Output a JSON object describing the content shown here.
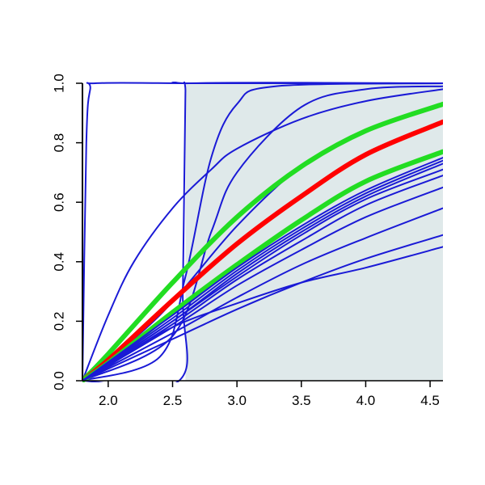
{
  "chart_data": {
    "type": "line",
    "title": "",
    "xlabel": "",
    "ylabel": "",
    "xlim": [
      1.8,
      4.6
    ],
    "ylim": [
      0.0,
      1.0
    ],
    "x_ticks": [
      "2.0",
      "2.5",
      "3.0",
      "3.5",
      "4.0",
      "4.5"
    ],
    "y_ticks": [
      "0.0",
      "0.2",
      "0.4",
      "0.6",
      "0.8",
      "1.0"
    ],
    "grid": false,
    "legend": "none",
    "colors": {
      "shade": "#dfe9ea",
      "blue": "#1a1ad6",
      "red": "#ff0000",
      "green": "#22dd22",
      "axis": "#000000"
    },
    "shaded_region": {
      "x_from": 2.6,
      "x_to": 4.6
    },
    "series": [
      {
        "color": "blue",
        "width": 2,
        "values": [
          [
            1.8,
            0.0
          ],
          [
            1.83,
            0.8
          ],
          [
            1.86,
            0.98
          ],
          [
            1.9,
            1.0
          ],
          [
            2.6,
            1.0
          ],
          [
            3.0,
            1.0
          ],
          [
            4.6,
            1.0
          ]
        ]
      },
      {
        "color": "blue",
        "width": 2,
        "values": [
          [
            1.8,
            0.0
          ],
          [
            2.55,
            0.0
          ],
          [
            2.58,
            0.3
          ],
          [
            2.6,
            0.97
          ],
          [
            2.63,
            1.0
          ],
          [
            4.6,
            1.0
          ]
        ]
      },
      {
        "color": "blue",
        "width": 2,
        "values": [
          [
            1.8,
            0.0
          ],
          [
            2.4,
            0.08
          ],
          [
            2.6,
            0.35
          ],
          [
            2.8,
            0.75
          ],
          [
            3.0,
            0.93
          ],
          [
            3.3,
            0.99
          ],
          [
            4.6,
            1.0
          ]
        ]
      },
      {
        "color": "blue",
        "width": 2,
        "values": [
          [
            1.8,
            0.0
          ],
          [
            2.5,
            0.15
          ],
          [
            2.8,
            0.5
          ],
          [
            3.0,
            0.7
          ],
          [
            3.5,
            0.92
          ],
          [
            4.0,
            0.98
          ],
          [
            4.6,
            0.99
          ]
        ]
      },
      {
        "color": "blue",
        "width": 2,
        "values": [
          [
            1.8,
            0.0
          ],
          [
            2.0,
            0.22
          ],
          [
            2.2,
            0.4
          ],
          [
            2.5,
            0.58
          ],
          [
            2.8,
            0.71
          ],
          [
            3.0,
            0.78
          ],
          [
            3.5,
            0.88
          ],
          [
            4.0,
            0.94
          ],
          [
            4.6,
            0.98
          ]
        ]
      },
      {
        "color": "blue",
        "width": 2,
        "values": [
          [
            1.8,
            0.0
          ],
          [
            2.4,
            0.22
          ],
          [
            3.0,
            0.52
          ],
          [
            3.5,
            0.72
          ],
          [
            4.0,
            0.84
          ],
          [
            4.6,
            0.93
          ]
        ]
      },
      {
        "color": "green",
        "width": 6,
        "values": [
          [
            1.8,
            0.0
          ],
          [
            2.0,
            0.09
          ],
          [
            2.5,
            0.33
          ],
          [
            3.0,
            0.55
          ],
          [
            3.5,
            0.72
          ],
          [
            4.0,
            0.84
          ],
          [
            4.6,
            0.93
          ]
        ]
      },
      {
        "color": "red",
        "width": 6,
        "values": [
          [
            1.8,
            0.0
          ],
          [
            2.0,
            0.07
          ],
          [
            2.5,
            0.27
          ],
          [
            3.0,
            0.46
          ],
          [
            3.5,
            0.62
          ],
          [
            4.0,
            0.76
          ],
          [
            4.6,
            0.87
          ]
        ]
      },
      {
        "color": "green",
        "width": 6,
        "values": [
          [
            1.8,
            0.0
          ],
          [
            2.0,
            0.06
          ],
          [
            2.5,
            0.23
          ],
          [
            3.0,
            0.39
          ],
          [
            3.5,
            0.54
          ],
          [
            4.0,
            0.67
          ],
          [
            4.6,
            0.77
          ]
        ]
      },
      {
        "color": "blue",
        "width": 2,
        "values": [
          [
            1.8,
            0.0
          ],
          [
            2.5,
            0.22
          ],
          [
            3.0,
            0.38
          ],
          [
            3.5,
            0.52
          ],
          [
            4.0,
            0.64
          ],
          [
            4.6,
            0.75
          ]
        ]
      },
      {
        "color": "blue",
        "width": 2,
        "values": [
          [
            1.8,
            0.0
          ],
          [
            2.5,
            0.21
          ],
          [
            3.0,
            0.37
          ],
          [
            3.5,
            0.51
          ],
          [
            4.0,
            0.63
          ],
          [
            4.6,
            0.74
          ]
        ]
      },
      {
        "color": "blue",
        "width": 2,
        "values": [
          [
            1.8,
            0.0
          ],
          [
            2.5,
            0.2
          ],
          [
            3.0,
            0.36
          ],
          [
            3.5,
            0.5
          ],
          [
            4.0,
            0.62
          ],
          [
            4.6,
            0.73
          ]
        ]
      },
      {
        "color": "blue",
        "width": 2,
        "values": [
          [
            1.8,
            0.0
          ],
          [
            2.5,
            0.2
          ],
          [
            3.0,
            0.35
          ],
          [
            3.5,
            0.49
          ],
          [
            4.0,
            0.61
          ],
          [
            4.6,
            0.71
          ]
        ]
      },
      {
        "color": "blue",
        "width": 2,
        "values": [
          [
            1.8,
            0.0
          ],
          [
            2.5,
            0.19
          ],
          [
            3.0,
            0.34
          ],
          [
            3.5,
            0.47
          ],
          [
            4.0,
            0.59
          ],
          [
            4.6,
            0.69
          ]
        ]
      },
      {
        "color": "blue",
        "width": 2,
        "values": [
          [
            1.8,
            0.0
          ],
          [
            2.5,
            0.18
          ],
          [
            3.0,
            0.32
          ],
          [
            3.5,
            0.44
          ],
          [
            4.0,
            0.55
          ],
          [
            4.6,
            0.65
          ]
        ]
      },
      {
        "color": "blue",
        "width": 2,
        "values": [
          [
            1.8,
            0.0
          ],
          [
            2.5,
            0.16
          ],
          [
            3.0,
            0.28
          ],
          [
            3.5,
            0.39
          ],
          [
            4.0,
            0.48
          ],
          [
            4.6,
            0.58
          ]
        ]
      },
      {
        "color": "blue",
        "width": 2,
        "values": [
          [
            1.8,
            0.0
          ],
          [
            2.5,
            0.14
          ],
          [
            3.0,
            0.24
          ],
          [
            3.5,
            0.33
          ],
          [
            4.0,
            0.41
          ],
          [
            4.6,
            0.49
          ]
        ]
      },
      {
        "color": "blue",
        "width": 2,
        "values": [
          [
            1.8,
            0.0
          ],
          [
            2.0,
            0.05
          ],
          [
            2.5,
            0.18
          ],
          [
            3.0,
            0.26
          ],
          [
            3.5,
            0.33
          ],
          [
            4.0,
            0.38
          ],
          [
            4.6,
            0.45
          ]
        ]
      }
    ]
  }
}
